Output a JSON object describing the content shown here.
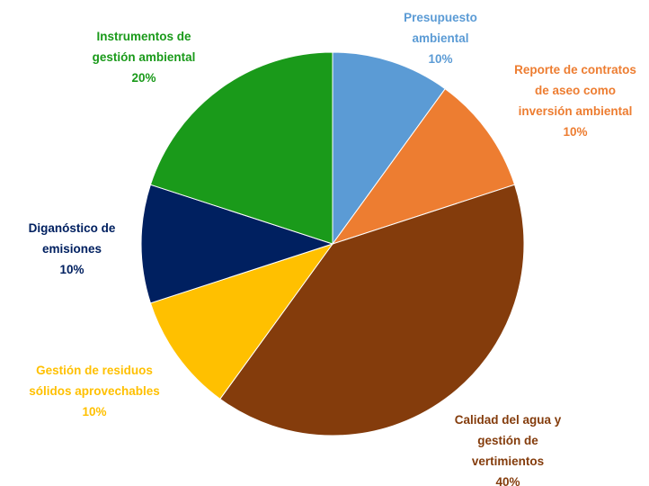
{
  "chart_data": {
    "type": "pie",
    "categories": [
      "Presupuesto\nambiental",
      "Reporte de contratos\nde aseo como\ninversión ambiental",
      "Calidad del agua y\ngestión de\nvertimientos",
      "Gestión de residuos\nsólidos aprovechables",
      "Diganóstico  de\nemisiones",
      "Instrumentos de\ngestión ambiental"
    ],
    "values": [
      10,
      10,
      40,
      10,
      10,
      20
    ],
    "value_labels": [
      "10%",
      "10%",
      "40%",
      "10%",
      "10%",
      "20%"
    ],
    "colors": [
      "#5b9bd5",
      "#ed7d31",
      "#843c0c",
      "#ffc000",
      "#002060",
      "#1a9a1a"
    ]
  }
}
